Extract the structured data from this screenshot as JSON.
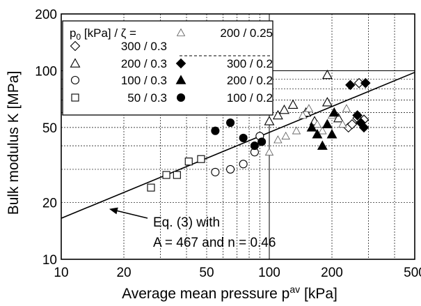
{
  "chart_data": {
    "type": "scatter",
    "xlabel": "Average mean pressure p",
    "xlabel_sup": "av",
    "xlabel_unit": " [kPa]",
    "ylabel": "Bulk modulus K [MPa]",
    "xscale": "log",
    "yscale": "log",
    "xlim": [
      10,
      500
    ],
    "ylim": [
      10,
      200
    ],
    "grid": true,
    "x_ticks": [
      10,
      20,
      50,
      100,
      200,
      500
    ],
    "x_tick_labels": [
      "10",
      "20",
      "50",
      "100",
      "200",
      "500"
    ],
    "y_ticks": [
      10,
      20,
      50,
      100,
      200
    ],
    "y_tick_labels": [
      "10",
      "20",
      "50",
      "100",
      "200"
    ],
    "legend": {
      "placement": "top-left",
      "title_main": "p",
      "title_sub": "0",
      "title_rest": " [kPa] / ζ ="
    },
    "series": [
      {
        "name": "300 / 0.3",
        "marker": "diamond-open",
        "points": [
          [
            240,
            50
          ],
          [
            250,
            52
          ],
          [
            265,
            56
          ],
          [
            270,
            86
          ],
          [
            285,
            55
          ]
        ]
      },
      {
        "name": "200 / 0.3",
        "marker": "triangle-open",
        "points": [
          [
            100,
            54
          ],
          [
            110,
            58
          ],
          [
            118,
            62
          ],
          [
            130,
            66
          ],
          [
            150,
            60
          ],
          [
            165,
            54
          ],
          [
            190,
            68
          ],
          [
            190,
            95
          ],
          [
            215,
            56
          ]
        ]
      },
      {
        "name": "100 / 0.3",
        "marker": "circle-open",
        "points": [
          [
            55,
            29
          ],
          [
            65,
            30
          ],
          [
            75,
            32
          ],
          [
            85,
            37
          ],
          [
            90,
            45
          ]
        ]
      },
      {
        "name": "50 / 0.3",
        "marker": "square-open",
        "points": [
          [
            27,
            24
          ],
          [
            32,
            28
          ],
          [
            36,
            28
          ],
          [
            41,
            33
          ],
          [
            47,
            34
          ]
        ]
      },
      {
        "name": "200 / 0.25",
        "marker": "triangle-light",
        "points": [
          [
            100,
            37
          ],
          [
            110,
            43
          ],
          [
            120,
            45
          ],
          [
            135,
            48
          ],
          [
            145,
            58
          ],
          [
            155,
            63
          ],
          [
            170,
            52
          ],
          [
            180,
            48
          ],
          [
            200,
            58
          ],
          [
            225,
            52
          ],
          [
            235,
            63
          ]
        ]
      },
      {
        "name": "300 / 0.2",
        "marker": "diamond-filled",
        "points": [
          [
            245,
            84
          ],
          [
            265,
            58
          ],
          [
            275,
            53
          ],
          [
            285,
            50
          ],
          [
            290,
            86
          ]
        ]
      },
      {
        "name": "200 / 0.2",
        "marker": "triangle-filled",
        "points": [
          [
            160,
            50
          ],
          [
            170,
            46
          ],
          [
            180,
            40
          ],
          [
            190,
            52
          ],
          [
            200,
            46
          ],
          [
            205,
            60
          ]
        ]
      },
      {
        "name": "100 / 0.2",
        "marker": "circle-filled",
        "points": [
          [
            55,
            48
          ],
          [
            65,
            53
          ],
          [
            75,
            44
          ],
          [
            85,
            40
          ],
          [
            92,
            42
          ]
        ]
      }
    ],
    "fit_line": {
      "A": 467,
      "n": 0.46,
      "x": [
        10,
        500
      ],
      "y": [
        16.5,
        98
      ]
    },
    "annotation": {
      "line1": "Eq. (3) with",
      "line2": "A = 467 and n = 0.46",
      "arrow_target": [
        17,
        18.5
      ]
    }
  }
}
